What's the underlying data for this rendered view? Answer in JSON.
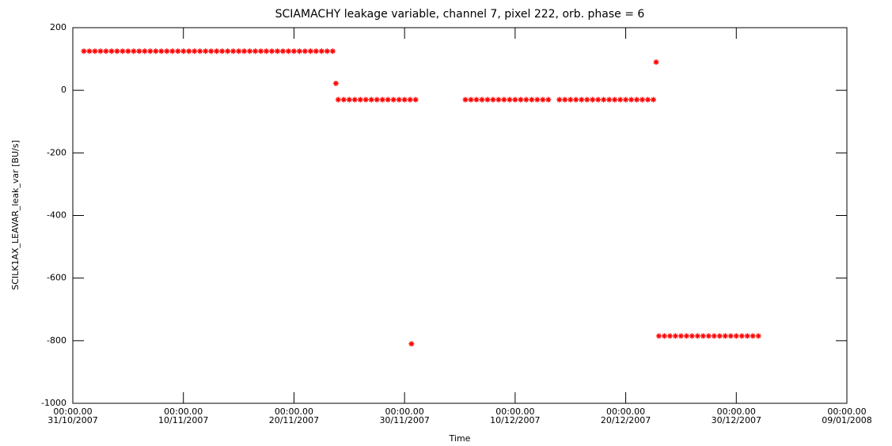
{
  "chart_data": {
    "type": "scatter",
    "title": "SCIAMACHY leakage variable, channel 7, pixel 222, orb. phase = 6",
    "xlabel": "Time",
    "ylabel": "SCILK1AX_LEAVAR_leak_var [BU/s]",
    "color": "#ff0000",
    "xlim": [
      "2007-10-31T00:00",
      "2008-01-09T00:00"
    ],
    "xticks": [
      {
        "value": "2007-10-31T00:00",
        "label": [
          "00:00.00",
          "31/10/2007"
        ]
      },
      {
        "value": "2007-11-10T00:00",
        "label": [
          "00:00.00",
          "10/11/2007"
        ]
      },
      {
        "value": "2007-11-20T00:00",
        "label": [
          "00:00.00",
          "20/11/2007"
        ]
      },
      {
        "value": "2007-11-30T00:00",
        "label": [
          "00:00.00",
          "30/11/2007"
        ]
      },
      {
        "value": "2007-12-10T00:00",
        "label": [
          "00:00.00",
          "10/12/2007"
        ]
      },
      {
        "value": "2007-12-20T00:00",
        "label": [
          "00:00.00",
          "20/12/2007"
        ]
      },
      {
        "value": "2007-12-30T00:00",
        "label": [
          "00:00.00",
          "30/12/2007"
        ]
      },
      {
        "value": "2008-01-09T00:00",
        "label": [
          "00:00.00",
          "09/01/2008"
        ]
      }
    ],
    "ylim": [
      -1000,
      200
    ],
    "yticks": [
      -1000,
      -800,
      -600,
      -400,
      -200,
      0,
      200
    ],
    "x": [
      "2007-11-01T00:00",
      "2007-11-01T12:00",
      "2007-11-02T00:00",
      "2007-11-02T12:00",
      "2007-11-03T00:00",
      "2007-11-03T12:00",
      "2007-11-04T00:00",
      "2007-11-04T12:00",
      "2007-11-05T00:00",
      "2007-11-05T12:00",
      "2007-11-06T00:00",
      "2007-11-06T12:00",
      "2007-11-07T00:00",
      "2007-11-07T12:00",
      "2007-11-08T00:00",
      "2007-11-08T12:00",
      "2007-11-09T00:00",
      "2007-11-09T12:00",
      "2007-11-10T00:00",
      "2007-11-10T12:00",
      "2007-11-11T00:00",
      "2007-11-11T12:00",
      "2007-11-12T00:00",
      "2007-11-12T12:00",
      "2007-11-13T00:00",
      "2007-11-13T12:00",
      "2007-11-14T00:00",
      "2007-11-14T12:00",
      "2007-11-15T00:00",
      "2007-11-15T12:00",
      "2007-11-16T00:00",
      "2007-11-16T12:00",
      "2007-11-17T00:00",
      "2007-11-17T12:00",
      "2007-11-18T00:00",
      "2007-11-18T12:00",
      "2007-11-19T00:00",
      "2007-11-19T12:00",
      "2007-11-20T00:00",
      "2007-11-20T12:00",
      "2007-11-21T00:00",
      "2007-11-21T12:00",
      "2007-11-22T00:00",
      "2007-11-22T12:00",
      "2007-11-23T00:00",
      "2007-11-23T12:00",
      "2007-11-23T19:00",
      "2007-11-24T00:00",
      "2007-11-24T12:00",
      "2007-11-25T00:00",
      "2007-11-25T12:00",
      "2007-11-26T00:00",
      "2007-11-26T12:00",
      "2007-11-27T00:00",
      "2007-11-27T12:00",
      "2007-11-28T00:00",
      "2007-11-28T12:00",
      "2007-11-29T00:00",
      "2007-11-29T12:00",
      "2007-11-30T00:00",
      "2007-11-30T12:00",
      "2007-11-30T15:00",
      "2007-12-01T00:00",
      "2007-12-05T12:00",
      "2007-12-06T00:00",
      "2007-12-06T12:00",
      "2007-12-07T00:00",
      "2007-12-07T12:00",
      "2007-12-08T00:00",
      "2007-12-08T12:00",
      "2007-12-09T00:00",
      "2007-12-09T12:00",
      "2007-12-10T00:00",
      "2007-12-10T12:00",
      "2007-12-11T00:00",
      "2007-12-11T12:00",
      "2007-12-12T00:00",
      "2007-12-12T12:00",
      "2007-12-13T00:00",
      "2007-12-14T00:00",
      "2007-12-14T12:00",
      "2007-12-15T00:00",
      "2007-12-15T12:00",
      "2007-12-16T00:00",
      "2007-12-16T12:00",
      "2007-12-17T00:00",
      "2007-12-17T12:00",
      "2007-12-18T00:00",
      "2007-12-18T12:00",
      "2007-12-19T00:00",
      "2007-12-19T12:00",
      "2007-12-20T00:00",
      "2007-12-20T12:00",
      "2007-12-21T00:00",
      "2007-12-21T12:00",
      "2007-12-22T00:00",
      "2007-12-22T12:00",
      "2007-12-22T18:00",
      "2007-12-23T00:00",
      "2007-12-23T12:00",
      "2007-12-24T00:00",
      "2007-12-24T12:00",
      "2007-12-25T00:00",
      "2007-12-25T12:00",
      "2007-12-26T00:00",
      "2007-12-26T12:00",
      "2007-12-27T00:00",
      "2007-12-27T12:00",
      "2007-12-28T00:00",
      "2007-12-28T12:00",
      "2007-12-29T00:00",
      "2007-12-29T12:00",
      "2007-12-30T00:00",
      "2007-12-30T12:00",
      "2007-12-31T00:00",
      "2007-12-31T12:00",
      "2008-01-01T00:00"
    ],
    "values": [
      125,
      125,
      125,
      125,
      125,
      125,
      125,
      125,
      125,
      125,
      125,
      125,
      125,
      125,
      125,
      125,
      125,
      125,
      125,
      125,
      125,
      125,
      125,
      125,
      125,
      125,
      125,
      125,
      125,
      125,
      125,
      125,
      125,
      125,
      125,
      125,
      125,
      125,
      125,
      125,
      125,
      125,
      125,
      125,
      125,
      125,
      22,
      -30,
      -30,
      -30,
      -30,
      -30,
      -30,
      -30,
      -30,
      -30,
      -30,
      -30,
      -30,
      -30,
      -30,
      -810,
      -30,
      -30,
      -30,
      -30,
      -30,
      -30,
      -30,
      -30,
      -30,
      -30,
      -30,
      -30,
      -30,
      -30,
      -30,
      -30,
      -30,
      -30,
      -30,
      -30,
      -30,
      -30,
      -30,
      -30,
      -30,
      -30,
      -30,
      -30,
      -30,
      -30,
      -30,
      -30,
      -30,
      -30,
      -30,
      90,
      -785,
      -785,
      -785,
      -785,
      -785,
      -785,
      -785,
      -785,
      -785,
      -785,
      -785,
      -785,
      -785,
      -785,
      -785,
      -785,
      -785,
      -785,
      -785
    ]
  }
}
